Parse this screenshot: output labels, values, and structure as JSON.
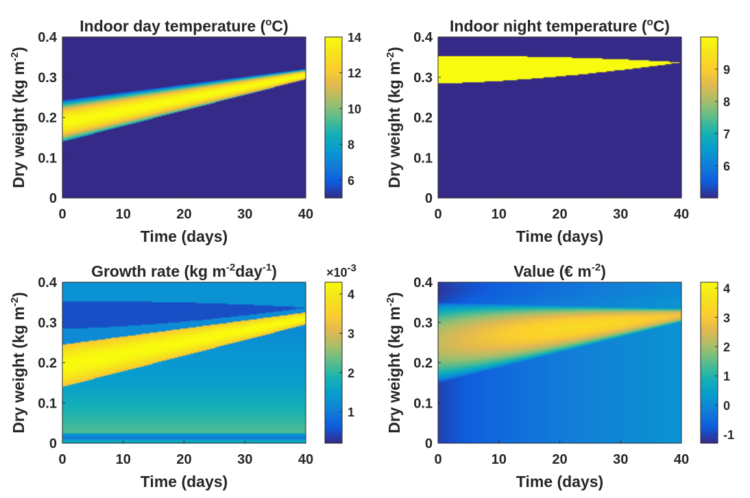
{
  "chart_data": [
    {
      "type": "heatmap",
      "id": "day-temp",
      "title": "Indoor day temperature (",
      "title_sup": "o",
      "title_end": "C)",
      "xlabel": "Time (days)",
      "ylabel": "Dry weight (kg m",
      "ylabel_sup": "-2",
      "ylabel_end": ")",
      "xlim": [
        0,
        40
      ],
      "ylim": [
        0,
        0.4
      ],
      "xticks": [
        "0",
        "10",
        "20",
        "30",
        "40"
      ],
      "yticks": [
        "0",
        "0.1",
        "0.2",
        "0.3",
        "0.4"
      ],
      "colorbar": {
        "min": 5,
        "max": 14,
        "ticks": [
          "6",
          "8",
          "10",
          "12",
          "14"
        ],
        "multiplier": ""
      },
      "background": 5,
      "band": {
        "lower_start": 0.14,
        "lower_end": 0.295,
        "upper_start": 0.245,
        "upper_end": 0.325,
        "peak": 14,
        "edge": 7.5
      }
    },
    {
      "type": "heatmap",
      "id": "night-temp",
      "title": "Indoor night temperature (",
      "title_sup": "o",
      "title_end": "C)",
      "xlabel": "Time (days)",
      "ylabel": "Dry weight (kg m",
      "ylabel_sup": "-2",
      "ylabel_end": ")",
      "xlim": [
        0,
        40
      ],
      "ylim": [
        0,
        0.4
      ],
      "xticks": [
        "0",
        "10",
        "20",
        "30",
        "40"
      ],
      "yticks": [
        "0",
        "0.1",
        "0.2",
        "0.3",
        "0.4"
      ],
      "colorbar": {
        "min": 5,
        "max": 10,
        "ticks": [
          "6",
          "7",
          "8",
          "9"
        ],
        "multiplier": ""
      },
      "background": 5,
      "band": {
        "center": 0.337,
        "lower_start": 0.285,
        "lower_end": 0.337,
        "upper_start": 0.353,
        "upper_end": 0.337,
        "value": 10
      }
    },
    {
      "type": "heatmap",
      "id": "growth-rate",
      "title": "Growth rate (kg m",
      "title_sup": "-2",
      "title_mid": "day",
      "title_sup2": "-1",
      "title_end": ")",
      "xlabel": "Time (days)",
      "ylabel": "Dry weight (kg m",
      "ylabel_sup": "-2",
      "ylabel_end": ")",
      "xlim": [
        0,
        40
      ],
      "ylim": [
        0,
        0.4
      ],
      "xticks": [
        "0",
        "10",
        "20",
        "30",
        "40"
      ],
      "yticks": [
        "0",
        "0.1",
        "0.2",
        "0.3",
        "0.4"
      ],
      "colorbar": {
        "min": 0.0002,
        "max": 0.0043,
        "ticks": [
          "1",
          "2",
          "3",
          "4"
        ],
        "tick_values": [
          0.001,
          0.002,
          0.003,
          0.004
        ],
        "multiplier": "×10",
        "multiplier_sup": "-3"
      },
      "regions": {
        "low_band_value": 0.0005,
        "upper_region_value": 0.0012,
        "bulk_top_value": 0.0013,
        "bulk_bottom_value": 0.0022,
        "optimal_peak": 0.0043,
        "optimal_edge": 0.0033
      }
    },
    {
      "type": "heatmap",
      "id": "value",
      "title": "Value (€ m",
      "title_sup": "-2",
      "title_end": ")",
      "xlabel": "Time (days)",
      "ylabel": "Dry weight (kg m",
      "ylabel_sup": "-2",
      "ylabel_end": ")",
      "xlim": [
        0,
        40
      ],
      "ylim": [
        0,
        0.4
      ],
      "xticks": [
        "0",
        "10",
        "20",
        "30",
        "40"
      ],
      "yticks": [
        "0",
        "0.1",
        "0.2",
        "0.3",
        "0.4"
      ],
      "colorbar": {
        "min": -1.3,
        "max": 4.2,
        "ticks": [
          "-1",
          "0",
          "1",
          "2",
          "3",
          "4"
        ],
        "multiplier": ""
      },
      "background_start": -1.1,
      "background_end": 0.2,
      "band": {
        "center_start": 0.25,
        "center_end": 0.318,
        "halfwidth_start": 0.1,
        "halfwidth_end": 0.016,
        "peak_start": 2.3,
        "peak_end": 3.4
      }
    }
  ]
}
